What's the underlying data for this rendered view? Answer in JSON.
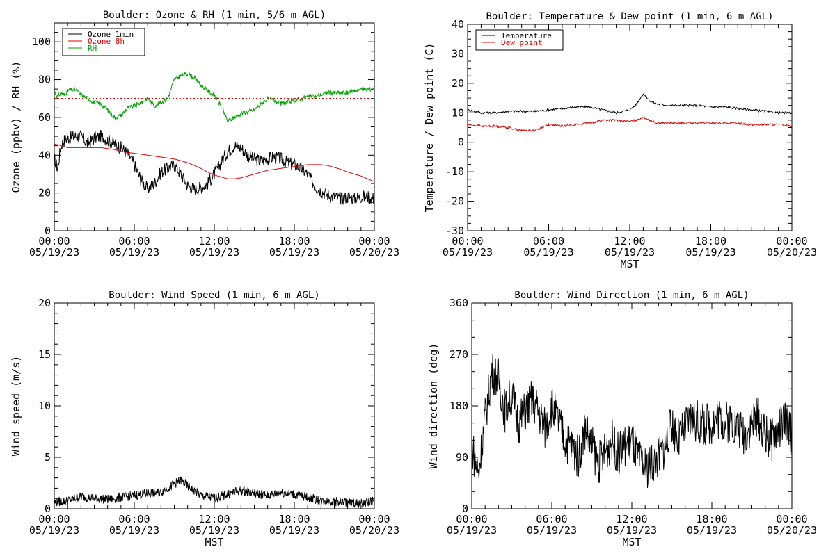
{
  "chart_data": [
    {
      "type": "line",
      "title": "Boulder: Ozone & RH (1 min, 5/6 m AGL)",
      "ylabel": "Ozone (ppbv) / RH (%)",
      "xlabel": "",
      "ylim": [
        0,
        110
      ],
      "yticks": [
        0,
        20,
        40,
        60,
        80,
        100
      ],
      "xticks": [
        {
          "time": "00:00",
          "date": "05/19/23"
        },
        {
          "time": "06:00",
          "date": "05/19/23"
        },
        {
          "time": "12:00",
          "date": "05/19/23"
        },
        {
          "time": "18:00",
          "date": "05/19/23"
        },
        {
          "time": "00:00",
          "date": "05/20/23"
        }
      ],
      "legend": {
        "position": "top-left",
        "entries": [
          {
            "name": "Ozone 1min",
            "color": "#000000"
          },
          {
            "name": "Ozone 8h",
            "color": "#e00000"
          },
          {
            "name": "RH",
            "color": "#00a000"
          }
        ]
      },
      "reference_line": {
        "y": 70,
        "color": "#e00000",
        "style": "dotted"
      },
      "x_hours": [
        0,
        0.25,
        0.5,
        0.75,
        1,
        1.5,
        2,
        2.5,
        3,
        3.5,
        4,
        4.5,
        5,
        5.5,
        6,
        6.5,
        7,
        7.5,
        8,
        8.5,
        9,
        9.5,
        10,
        10.5,
        11,
        11.5,
        12,
        12.5,
        13,
        13.5,
        14,
        14.5,
        15,
        15.5,
        16,
        16.5,
        17,
        17.5,
        18,
        18.5,
        19,
        19.5,
        20,
        20.5,
        21,
        21.5,
        22,
        22.5,
        23,
        23.5,
        24
      ],
      "series": [
        {
          "name": "Ozone 1min",
          "color": "#000000",
          "values": [
            38,
            33,
            45,
            48,
            49,
            50,
            50,
            46,
            49,
            50,
            48,
            46,
            44,
            41,
            35,
            27,
            22,
            25,
            31,
            33,
            35,
            30,
            24,
            22,
            23,
            25,
            30,
            36,
            42,
            45,
            44,
            40,
            38,
            37,
            38,
            39,
            38,
            36,
            35,
            33,
            30,
            24,
            21,
            19,
            18,
            17,
            18,
            17,
            18,
            18,
            17
          ]
        },
        {
          "name": "Ozone 8h",
          "color": "#e00000",
          "values": [
            46,
            45.5,
            45,
            44.5,
            44,
            44,
            44,
            44,
            44,
            44,
            43.5,
            43,
            42,
            41.5,
            41,
            40.5,
            40,
            39.5,
            39,
            38.5,
            38,
            37,
            36,
            34.5,
            33,
            31,
            29.5,
            28.5,
            27.5,
            27.5,
            28,
            29,
            30,
            31,
            32,
            32.5,
            33,
            33.5,
            34,
            34.5,
            35,
            35,
            35,
            34.5,
            33.5,
            32.5,
            31,
            30,
            29,
            27.5,
            26
          ]
        },
        {
          "name": "RH",
          "color": "#00a000",
          "values": [
            74,
            71,
            73,
            72,
            74,
            75,
            72,
            70,
            68,
            67,
            64,
            60,
            61,
            65,
            66,
            68,
            70,
            66,
            68,
            70,
            80,
            82,
            83,
            81,
            77,
            74,
            72,
            66,
            58,
            60,
            62,
            63,
            64,
            67,
            70,
            69,
            67,
            68,
            69,
            70,
            71,
            71,
            72,
            73,
            73,
            73,
            73,
            74,
            75,
            75,
            75
          ]
        }
      ]
    },
    {
      "type": "line",
      "title": "Boulder: Temperature & Dew point (1 min, 6 m AGL)",
      "ylabel": "Temperature / Dew point (C)",
      "xlabel": "MST",
      "ylim": [
        -30,
        40
      ],
      "yticks": [
        -30,
        -20,
        -10,
        0,
        10,
        20,
        30,
        40
      ],
      "xticks": [
        {
          "time": "00:00",
          "date": "05/19/23"
        },
        {
          "time": "06:00",
          "date": "05/19/23"
        },
        {
          "time": "12:00",
          "date": "05/19/23"
        },
        {
          "time": "18:00",
          "date": "05/19/23"
        },
        {
          "time": "00:00",
          "date": "05/20/23"
        }
      ],
      "legend": {
        "position": "top-left",
        "entries": [
          {
            "name": "Temperature",
            "color": "#000000"
          },
          {
            "name": "Dew point",
            "color": "#e00000"
          }
        ]
      },
      "x_hours": [
        0,
        1,
        2,
        3,
        4,
        5,
        6,
        7,
        8,
        9,
        10,
        11,
        12,
        12.5,
        13,
        13.5,
        14,
        15,
        16,
        17,
        18,
        19,
        20,
        21,
        22,
        23,
        24
      ],
      "series": [
        {
          "name": "Temperature",
          "color": "#000000",
          "values": [
            11,
            10,
            10,
            10.5,
            10.5,
            10.5,
            11,
            11.5,
            12,
            12,
            11,
            10,
            11,
            13,
            16.5,
            14,
            13,
            12.5,
            12.5,
            12.5,
            12,
            12,
            11.5,
            11,
            10.5,
            10,
            10
          ]
        },
        {
          "name": "Dew point",
          "color": "#e00000",
          "values": [
            6,
            5.5,
            5.5,
            5,
            4,
            4,
            6,
            5.5,
            6,
            6.5,
            7.5,
            7.5,
            7,
            7.5,
            8.5,
            7.5,
            6.5,
            6.5,
            6.5,
            6.5,
            6.5,
            6.5,
            6.5,
            6,
            6,
            6,
            5.5
          ]
        }
      ]
    },
    {
      "type": "line",
      "title": "Boulder: Wind Speed (1 min, 6 m AGL)",
      "ylabel": "Wind speed (m/s)",
      "xlabel": "MST",
      "ylim": [
        0,
        20
      ],
      "yticks": [
        0,
        5,
        10,
        15,
        20
      ],
      "xticks": [
        {
          "time": "00:00",
          "date": "05/19/23"
        },
        {
          "time": "06:00",
          "date": "05/19/23"
        },
        {
          "time": "12:00",
          "date": "05/19/23"
        },
        {
          "time": "18:00",
          "date": "05/19/23"
        },
        {
          "time": "00:00",
          "date": "05/20/23"
        }
      ],
      "x_hours": [
        0,
        1,
        2,
        3,
        4,
        5,
        6,
        7,
        8,
        9,
        9.5,
        10,
        11,
        12,
        13,
        14,
        15,
        16,
        17,
        18,
        19,
        20,
        21,
        22,
        23,
        24
      ],
      "series": [
        {
          "name": "",
          "color": "#000000",
          "values": [
            0.6,
            0.8,
            1.2,
            1.0,
            0.9,
            1.1,
            1.3,
            1.5,
            1.6,
            2.4,
            2.8,
            2.2,
            1.3,
            1.0,
            1.4,
            1.8,
            1.5,
            1.3,
            1.6,
            1.4,
            1.1,
            0.8,
            0.7,
            0.6,
            0.5,
            0.8
          ]
        }
      ]
    },
    {
      "type": "line",
      "title": "Boulder: Wind Direction (1 min, 6 m AGL)",
      "ylabel": "Wind direction (deg)",
      "xlabel": "MST",
      "ylim": [
        0,
        360
      ],
      "yticks": [
        0,
        90,
        180,
        270,
        360
      ],
      "xticks": [
        {
          "time": "00:00",
          "date": "05/19/23"
        },
        {
          "time": "06:00",
          "date": "05/19/23"
        },
        {
          "time": "12:00",
          "date": "05/19/23"
        },
        {
          "time": "18:00",
          "date": "05/19/23"
        },
        {
          "time": "00:00",
          "date": "05/20/23"
        }
      ],
      "x_hours": [
        0,
        0.5,
        1,
        1.5,
        2,
        2.5,
        3,
        3.5,
        4,
        4.5,
        5,
        5.5,
        6,
        6.5,
        7,
        7.5,
        8,
        8.5,
        9,
        9.5,
        10,
        10.5,
        11,
        11.5,
        12,
        12.5,
        13,
        13.5,
        14,
        14.5,
        15,
        15.5,
        16,
        16.5,
        17,
        17.5,
        18,
        18.5,
        19,
        19.5,
        20,
        20.5,
        21,
        21.5,
        22,
        22.5,
        23,
        23.5,
        24
      ],
      "series": [
        {
          "name": "",
          "color": "#000000",
          "values": [
            110,
            60,
            160,
            240,
            230,
            170,
            200,
            150,
            170,
            190,
            170,
            140,
            180,
            150,
            120,
            110,
            90,
            140,
            110,
            80,
            100,
            120,
            95,
            110,
            120,
            85,
            70,
            80,
            90,
            110,
            150,
            120,
            140,
            160,
            150,
            145,
            150,
            160,
            150,
            155,
            140,
            130,
            150,
            160,
            130,
            120,
            140,
            155,
            130
          ]
        }
      ]
    }
  ],
  "colors": {
    "black": "#000000",
    "red": "#e00000",
    "green": "#00a000"
  }
}
